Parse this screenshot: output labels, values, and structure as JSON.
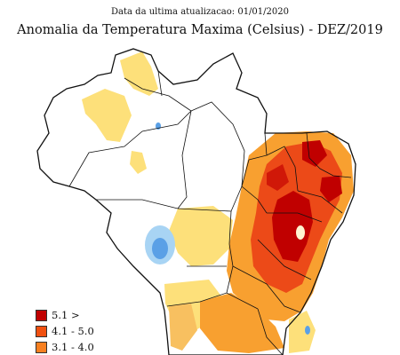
{
  "header": {
    "subtitle": "Data da ultima atualizacao: 01/01/2020",
    "title": "Anomalia da Temperatura Maxima (Celsius) - DEZ/2019"
  },
  "legend": {
    "items": [
      {
        "label": "5.1 >",
        "color": "#c00000"
      },
      {
        "label": "4.1 - 5.0",
        "color": "#f05010"
      },
      {
        "label": "3.1 - 4.0",
        "color": "#f88020"
      }
    ]
  },
  "colors": {
    "anomaly_dark_red": "#c00000",
    "anomaly_red": "#e83010",
    "anomaly_orange": "#f88020",
    "anomaly_light_orange": "#f8b040",
    "anomaly_yellow": "#fde07a",
    "anomaly_blue": "#5aa0e6",
    "anomaly_light_blue": "#a8d4f4",
    "border": "#111111"
  }
}
